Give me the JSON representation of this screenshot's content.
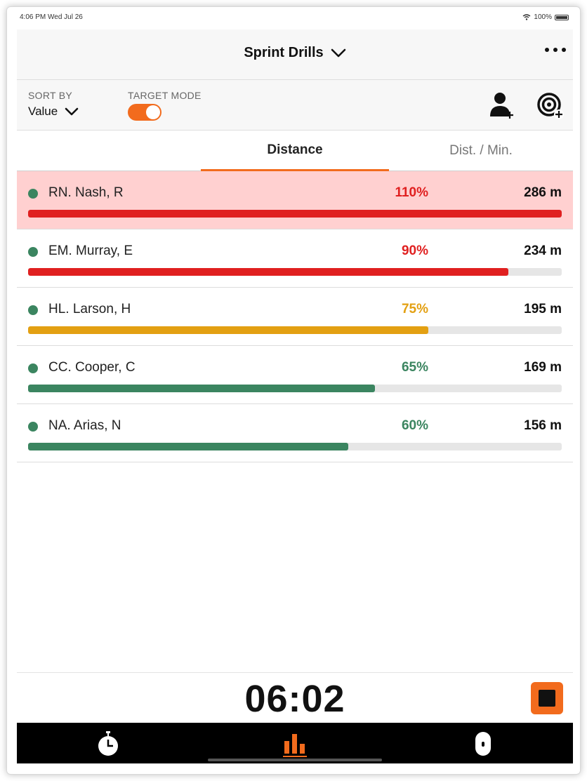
{
  "status": {
    "time": "4:06 PM  Wed Jul 26",
    "battery": "100%"
  },
  "nav": {
    "title": "Sprint Drills"
  },
  "controls": {
    "sort_label": "SORT BY",
    "sort_value": "Value",
    "target_label": "TARGET MODE",
    "target_on": true
  },
  "tabs": [
    {
      "label": "Distance",
      "active": true
    },
    {
      "label": "Dist. / Min.",
      "active": false
    }
  ],
  "athletes": [
    {
      "name": "RN. Nash, R",
      "percent_text": "110%",
      "percent": 110,
      "distance": "286 m",
      "status_color": "#e02020",
      "highlight": true
    },
    {
      "name": "EM. Murray, E",
      "percent_text": "90%",
      "percent": 90,
      "distance": "234 m",
      "status_color": "#e02020",
      "highlight": false
    },
    {
      "name": "HL. Larson, H",
      "percent_text": "75%",
      "percent": 75,
      "distance": "195 m",
      "status_color": "#e3a012",
      "highlight": false
    },
    {
      "name": "CC. Cooper, C",
      "percent_text": "65%",
      "percent": 65,
      "distance": "169 m",
      "status_color": "#3b8560",
      "highlight": false
    },
    {
      "name": "NA. Arias, N",
      "percent_text": "60%",
      "percent": 60,
      "distance": "156 m",
      "status_color": "#3b8560",
      "highlight": false
    }
  ],
  "timer": {
    "value": "06:02"
  },
  "tabbar": {
    "items": [
      {
        "icon": "stopwatch-icon",
        "active": false
      },
      {
        "icon": "bar-chart-icon",
        "active": true
      },
      {
        "icon": "device-icon",
        "active": false
      }
    ]
  },
  "colors": {
    "accent": "#f26b1d",
    "online": "#3b8560"
  }
}
